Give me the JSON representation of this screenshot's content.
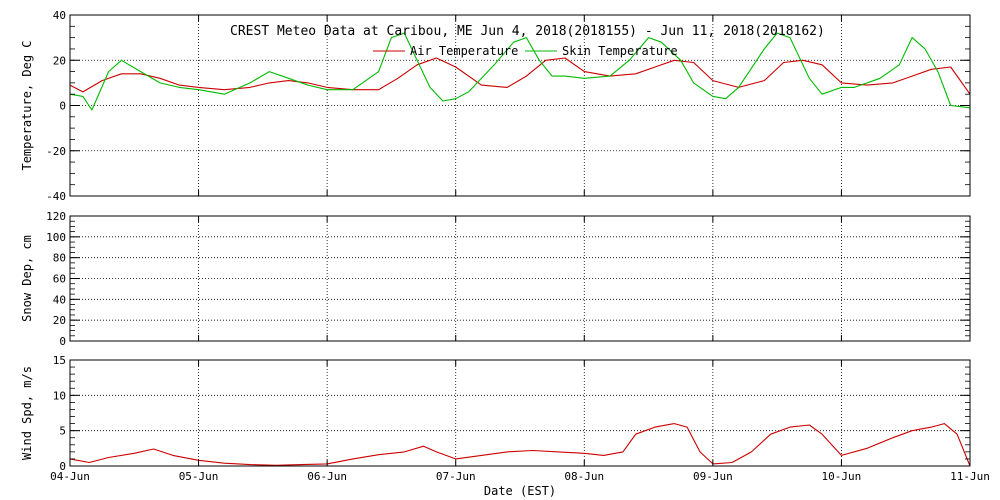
{
  "figure": {
    "title": "CREST Meteo Data at Caribou, ME   Jun  4, 2018(2018155) - Jun 11, 2018(2018162)",
    "xlabel": "Date (EST)",
    "x_ticks": [
      "04-Jun",
      "05-Jun",
      "06-Jun",
      "07-Jun",
      "08-Jun",
      "09-Jun",
      "10-Jun",
      "11-Jun"
    ],
    "colors": {
      "air": "#cc0000",
      "skin": "#00bb00",
      "wind": "#cc0000"
    }
  },
  "chart_data": [
    {
      "type": "line",
      "ylabel": "Temperature, Deg C",
      "ylim": [
        -40,
        40
      ],
      "yticks": [
        -40,
        -20,
        0,
        20,
        40
      ],
      "xlim": [
        0,
        7
      ],
      "grid": true,
      "legend": "top",
      "series": [
        {
          "name": "Air Temperature",
          "color": "#cc0000",
          "x": [
            0,
            0.1,
            0.25,
            0.4,
            0.55,
            0.7,
            0.85,
            1.0,
            1.2,
            1.4,
            1.55,
            1.7,
            1.85,
            2.0,
            2.2,
            2.4,
            2.55,
            2.7,
            2.85,
            3.0,
            3.2,
            3.4,
            3.55,
            3.7,
            3.85,
            4.0,
            4.2,
            4.4,
            4.55,
            4.7,
            4.85,
            5.0,
            5.2,
            5.4,
            5.55,
            5.7,
            5.85,
            6.0,
            6.2,
            6.4,
            6.55,
            6.7,
            6.85,
            7.0
          ],
          "y": [
            9,
            6,
            11,
            14,
            14,
            12,
            9,
            8,
            7,
            8,
            10,
            11,
            10,
            8,
            7,
            7,
            12,
            18,
            21,
            17,
            9,
            8,
            13,
            20,
            21,
            15,
            13,
            14,
            17,
            20,
            19,
            11,
            8,
            11,
            19,
            20,
            18,
            10,
            9,
            10,
            13,
            16,
            17,
            5
          ]
        },
        {
          "name": "Skin Temperature",
          "color": "#00bb00",
          "x": [
            0,
            0.1,
            0.17,
            0.3,
            0.4,
            0.55,
            0.7,
            0.85,
            1.0,
            1.2,
            1.4,
            1.55,
            1.7,
            1.85,
            2.0,
            2.2,
            2.4,
            2.5,
            2.6,
            2.7,
            2.8,
            2.9,
            3.0,
            3.1,
            3.3,
            3.45,
            3.55,
            3.65,
            3.75,
            3.85,
            4.0,
            4.2,
            4.35,
            4.5,
            4.6,
            4.75,
            4.85,
            5.0,
            5.1,
            5.2,
            5.4,
            5.5,
            5.6,
            5.75,
            5.85,
            6.0,
            6.1,
            6.3,
            6.45,
            6.55,
            6.65,
            6.75,
            6.85,
            7.0
          ],
          "y": [
            5,
            4,
            -2,
            15,
            20,
            15,
            10,
            8,
            7,
            5,
            10,
            15,
            12,
            9,
            7,
            7,
            15,
            30,
            32,
            20,
            8,
            2,
            3,
            6,
            18,
            28,
            30,
            20,
            13,
            13,
            12,
            13,
            20,
            30,
            28,
            20,
            10,
            4,
            3,
            8,
            25,
            32,
            30,
            12,
            5,
            8,
            8,
            12,
            18,
            30,
            25,
            15,
            0,
            -1
          ]
        }
      ]
    },
    {
      "type": "line",
      "ylabel": "Snow Dep, cm",
      "ylim": [
        0,
        120
      ],
      "yticks": [
        0,
        20,
        40,
        60,
        80,
        100,
        120
      ],
      "xlim": [
        0,
        7
      ],
      "grid": true,
      "series": []
    },
    {
      "type": "line",
      "ylabel": "Wind Spd, m/s",
      "ylim": [
        0,
        15
      ],
      "yticks": [
        0,
        5,
        10,
        15
      ],
      "xlim": [
        0,
        7
      ],
      "grid": true,
      "series": [
        {
          "color": "#cc0000",
          "x": [
            0,
            0.15,
            0.3,
            0.5,
            0.65,
            0.8,
            1.0,
            1.2,
            1.4,
            1.6,
            1.8,
            2.0,
            2.2,
            2.4,
            2.6,
            2.75,
            2.85,
            3.0,
            3.2,
            3.4,
            3.6,
            3.8,
            4.0,
            4.15,
            4.3,
            4.4,
            4.55,
            4.7,
            4.8,
            4.9,
            5.0,
            5.15,
            5.3,
            5.45,
            5.6,
            5.75,
            5.85,
            6.0,
            6.2,
            6.4,
            6.55,
            6.7,
            6.8,
            6.9,
            7.0
          ],
          "y": [
            1,
            0.5,
            1.2,
            1.8,
            2.4,
            1.5,
            0.8,
            0.4,
            0.2,
            0.1,
            0.2,
            0.3,
            1.0,
            1.6,
            2.0,
            2.8,
            2.0,
            1.0,
            1.5,
            2.0,
            2.2,
            2.0,
            1.8,
            1.5,
            2.0,
            4.5,
            5.5,
            6.0,
            5.5,
            2.0,
            0.3,
            0.5,
            2.0,
            4.5,
            5.5,
            5.8,
            4.5,
            1.5,
            2.5,
            4.0,
            5.0,
            5.5,
            6.0,
            4.5,
            0
          ]
        }
      ]
    }
  ]
}
